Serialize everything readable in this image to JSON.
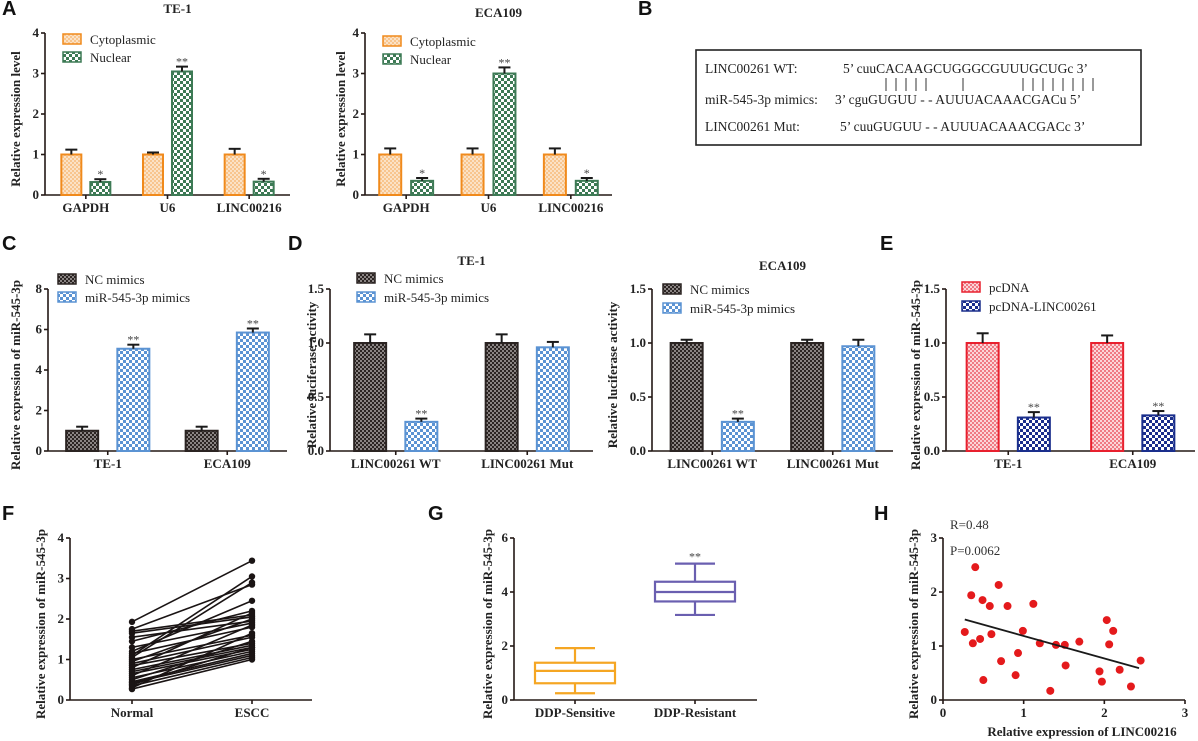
{
  "figure": {
    "panels": [
      "A",
      "B",
      "C",
      "D",
      "E",
      "F",
      "G",
      "H"
    ]
  },
  "colors": {
    "cytoplasmic": "#f08a1c",
    "nuclear": "#3d7a55",
    "nc_mimics": "#2b2422",
    "mir_mimics": "#5b93d3",
    "pcdna": "#e8202e",
    "pcdna_linc": "#1a2e8c",
    "box_sensitive": "#f5a623",
    "box_resistant": "#6a5fb0",
    "scatter": "#e41a1c",
    "line": "#1a1a1a"
  },
  "sequence_box": {
    "rows": [
      {
        "label": "LINC00261 WT:",
        "seq": "5’ cuuCACAAGCUGGGCGUUUGCUGc 3’"
      },
      {
        "label": "",
        "seq": "| | | | |         |              | | | | | | | |"
      },
      {
        "label": "miR-545-3p mimics:",
        "seq": "3’ cguGUGUU - - AUUUACAAACGACu 5’"
      },
      {
        "label": "LINC00261 Mut:",
        "seq": "5’ cuuGUGUU - - AUUUACAAACGACc 3’"
      }
    ]
  },
  "chart_data": [
    {
      "panel": "A",
      "type": "bar",
      "title": "TE-1",
      "ylabel": "Relative expression level",
      "ylim": [
        0,
        4
      ],
      "yticks": [
        "0",
        "1",
        "2",
        "3",
        "4"
      ],
      "categories": [
        "GAPDH",
        "U6",
        "LINC00216"
      ],
      "series": [
        {
          "name": "Cytoplasmic",
          "values": [
            1.0,
            1.0,
            1.0
          ],
          "errors": [
            0.12,
            0.05,
            0.14
          ],
          "sig": [
            "",
            "",
            ""
          ]
        },
        {
          "name": "Nuclear",
          "values": [
            0.32,
            3.05,
            0.33
          ],
          "errors": [
            0.07,
            0.12,
            0.07
          ],
          "sig": [
            "*",
            "**",
            "*"
          ]
        }
      ],
      "legend": "top-left"
    },
    {
      "panel": "A2",
      "type": "bar",
      "title": "ECA109",
      "ylabel": "Relative expression level",
      "ylim": [
        0,
        4
      ],
      "yticks": [
        "0",
        "1",
        "2",
        "3",
        "4"
      ],
      "categories": [
        "GAPDH",
        "U6",
        "LINC00216"
      ],
      "series": [
        {
          "name": "Cytoplasmic",
          "values": [
            1.0,
            1.0,
            1.0
          ],
          "errors": [
            0.15,
            0.15,
            0.15
          ],
          "sig": [
            "",
            "",
            ""
          ]
        },
        {
          "name": "Nuclear",
          "values": [
            0.35,
            3.0,
            0.35
          ],
          "errors": [
            0.07,
            0.15,
            0.07
          ],
          "sig": [
            "*",
            "**",
            "*"
          ]
        }
      ],
      "legend": "top-left"
    },
    {
      "panel": "C",
      "type": "bar",
      "title": "",
      "ylabel": "Relative expression of miR-545-3p",
      "ylim": [
        0,
        8
      ],
      "yticks": [
        "0",
        "2",
        "4",
        "6",
        "8"
      ],
      "categories": [
        "TE-1",
        "ECA109"
      ],
      "series": [
        {
          "name": "NC mimics",
          "values": [
            1.0,
            1.0
          ],
          "errors": [
            0.2,
            0.2
          ],
          "sig": [
            "",
            ""
          ]
        },
        {
          "name": "miR-545-3p mimics",
          "values": [
            5.05,
            5.85
          ],
          "errors": [
            0.2,
            0.2
          ],
          "sig": [
            "**",
            "**"
          ]
        }
      ],
      "legend": "top-left"
    },
    {
      "panel": "D",
      "type": "bar",
      "title": "TE-1",
      "ylabel": "Relative luciferase activity",
      "ylim": [
        0,
        1.5
      ],
      "yticks": [
        "0.0",
        "0.5",
        "1.0",
        "1.5"
      ],
      "categories": [
        "LINC00261 WT",
        "LINC00261 Mut"
      ],
      "series": [
        {
          "name": "NC mimics",
          "values": [
            1.0,
            1.0
          ],
          "errors": [
            0.08,
            0.08
          ],
          "sig": [
            "",
            ""
          ]
        },
        {
          "name": "miR-545-3p mimics",
          "values": [
            0.27,
            0.96
          ],
          "errors": [
            0.03,
            0.05
          ],
          "sig": [
            "**",
            ""
          ]
        }
      ],
      "legend": "top-left"
    },
    {
      "panel": "D2",
      "type": "bar",
      "title": "ECA109",
      "ylabel": "Relative luciferase activity",
      "ylim": [
        0,
        1.5
      ],
      "yticks": [
        "0.0",
        "0.5",
        "1.0",
        "1.5"
      ],
      "categories": [
        "LINC00261 WT",
        "LINC00261 Mut"
      ],
      "series": [
        {
          "name": "NC mimics",
          "values": [
            1.0,
            1.0
          ],
          "errors": [
            0.03,
            0.03
          ],
          "sig": [
            "",
            ""
          ]
        },
        {
          "name": "miR-545-3p mimics",
          "values": [
            0.27,
            0.97
          ],
          "errors": [
            0.03,
            0.06
          ],
          "sig": [
            "**",
            ""
          ]
        }
      ],
      "legend": "top-left"
    },
    {
      "panel": "E",
      "type": "bar",
      "title": "",
      "ylabel": "Relative expression of miR-545-3p",
      "ylim": [
        0,
        1.5
      ],
      "yticks": [
        "0.0",
        "0.5",
        "1.0",
        "1.5"
      ],
      "categories": [
        "TE-1",
        "ECA109"
      ],
      "series": [
        {
          "name": "pcDNA",
          "values": [
            1.0,
            1.0
          ],
          "errors": [
            0.09,
            0.07
          ],
          "sig": [
            "",
            ""
          ]
        },
        {
          "name": "pcDNA-LINC00261",
          "values": [
            0.31,
            0.33
          ],
          "errors": [
            0.05,
            0.04
          ],
          "sig": [
            "**",
            "**"
          ]
        }
      ],
      "legend": "top-left"
    },
    {
      "panel": "F",
      "type": "line",
      "title": "",
      "ylabel": "Relative expression of miR-545-3p",
      "ylim": [
        0,
        4
      ],
      "yticks": [
        "0",
        "1",
        "2",
        "3",
        "4"
      ],
      "categories": [
        "Normal",
        "ESCC"
      ],
      "pairs": [
        [
          1.93,
          3.44
        ],
        [
          1.75,
          2.85
        ],
        [
          1.7,
          2.1
        ],
        [
          1.65,
          2.05
        ],
        [
          1.55,
          1.95
        ],
        [
          1.45,
          2.2
        ],
        [
          1.3,
          1.9
        ],
        [
          1.2,
          2.45
        ],
        [
          1.15,
          1.8
        ],
        [
          1.1,
          3.05
        ],
        [
          1.05,
          2.9
        ],
        [
          1.0,
          1.6
        ],
        [
          0.95,
          2.0
        ],
        [
          0.9,
          1.55
        ],
        [
          0.85,
          1.4
        ],
        [
          0.8,
          2.15
        ],
        [
          0.75,
          1.35
        ],
        [
          0.7,
          1.3
        ],
        [
          0.65,
          1.25
        ],
        [
          0.6,
          1.85
        ],
        [
          0.55,
          1.2
        ],
        [
          0.5,
          1.45
        ],
        [
          0.45,
          1.15
        ],
        [
          0.42,
          1.1
        ],
        [
          0.38,
          1.3
        ],
        [
          0.35,
          1.05
        ],
        [
          0.3,
          1.65
        ],
        [
          0.27,
          1.0
        ]
      ]
    },
    {
      "panel": "G",
      "type": "box",
      "title": "",
      "ylabel": "Relative expression of miR-545-3p",
      "ylim": [
        0,
        6
      ],
      "yticks": [
        "0",
        "2",
        "4",
        "6"
      ],
      "categories": [
        "DDP-Sensitive",
        "DDP-Resistant"
      ],
      "boxes": [
        {
          "min": 0.25,
          "q1": 0.62,
          "median": 1.08,
          "q3": 1.38,
          "max": 1.92,
          "sig": ""
        },
        {
          "min": 3.15,
          "q1": 3.65,
          "median": 4.0,
          "q3": 4.38,
          "max": 5.05,
          "sig": "**"
        }
      ]
    },
    {
      "panel": "H",
      "type": "scatter",
      "title": "",
      "xlabel": "Relative expression of LINC00216",
      "ylabel": "Relative expression of miR-545-3p",
      "xlim": [
        0,
        3
      ],
      "ylim": [
        0,
        3
      ],
      "xticks": [
        "0",
        "1",
        "2",
        "3"
      ],
      "yticks": [
        "0",
        "1",
        "2",
        "3"
      ],
      "annotations": [
        "R=0.48",
        "P=0.0062"
      ],
      "points": [
        [
          0.27,
          1.26
        ],
        [
          0.35,
          1.94
        ],
        [
          0.37,
          1.05
        ],
        [
          0.4,
          2.46
        ],
        [
          0.46,
          1.13
        ],
        [
          0.49,
          1.85
        ],
        [
          0.5,
          0.37
        ],
        [
          0.58,
          1.74
        ],
        [
          0.6,
          1.22
        ],
        [
          0.69,
          2.13
        ],
        [
          0.72,
          0.72
        ],
        [
          0.8,
          1.74
        ],
        [
          0.9,
          0.46
        ],
        [
          0.93,
          0.87
        ],
        [
          0.99,
          1.28
        ],
        [
          1.12,
          1.78
        ],
        [
          1.2,
          1.05
        ],
        [
          1.33,
          0.17
        ],
        [
          1.4,
          1.02
        ],
        [
          1.51,
          1.02
        ],
        [
          1.52,
          0.64
        ],
        [
          1.69,
          1.08
        ],
        [
          1.94,
          0.53
        ],
        [
          1.97,
          0.34
        ],
        [
          2.03,
          1.48
        ],
        [
          2.06,
          1.03
        ],
        [
          2.11,
          1.28
        ],
        [
          2.19,
          0.56
        ],
        [
          2.33,
          0.25
        ],
        [
          2.45,
          0.73
        ]
      ],
      "fit_line": [
        [
          0.27,
          1.49
        ],
        [
          2.43,
          0.59
        ]
      ]
    }
  ]
}
